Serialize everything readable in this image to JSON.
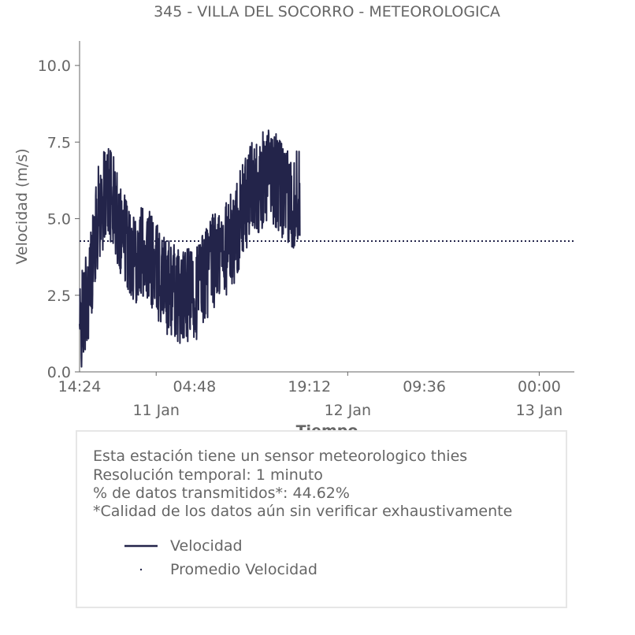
{
  "title": "345 - VILLA DEL SOCORRO - METEOROLOGICA",
  "chart_data": {
    "type": "line",
    "ylabel": "Velocidad (m/s)",
    "xlabel": "Tiempo",
    "ylim": [
      0,
      10.8
    ],
    "yticks": [
      "0.0",
      "2.5",
      "5.0",
      "7.5",
      "10.0"
    ],
    "xlim_hours": [
      0,
      62
    ],
    "xtick_times": [
      "14:24",
      "04:48",
      "19:12",
      "09:36",
      "00:00"
    ],
    "xtick_dates": [
      "11 Jan",
      "12 Jan",
      "13 Jan"
    ],
    "series": [
      {
        "name": "Velocidad",
        "color": "#23244a",
        "segments": [
          {
            "x": [
              0.0,
              1.2,
              2.4,
              3.6,
              4.8,
              6.0,
              7.2,
              8.4,
              9.6,
              10.8,
              12.0,
              13.2,
              14.4,
              15.6,
              16.8,
              18.0,
              19.2,
              20.4,
              21.6,
              22.8,
              24.0,
              25.2,
              26.4,
              27.6
            ],
            "y": [
              1.3,
              2.8,
              5.2,
              6.0,
              5.0,
              4.2,
              3.8,
              3.9,
              3.3,
              2.8,
              2.6,
              2.4,
              2.5,
              3.2,
              3.6,
              4.0,
              4.3,
              5.2,
              6.0,
              6.2,
              6.5,
              6.0,
              5.5,
              5.8
            ]
          }
        ]
      },
      {
        "name": "Promedio Velocidad",
        "color": "#23244a",
        "constant": 4.27
      }
    ]
  },
  "info": {
    "line1": "Esta estación tiene un sensor meteorologico thies",
    "line2": "Resolución temporal: 1 minuto",
    "line3": "% de datos transmitidos*: 44.62%",
    "line4": "*Calidad de los datos aún sin verificar exhaustivamente"
  },
  "legend": {
    "velocidad": "Velocidad",
    "promedio": "Promedio Velocidad"
  }
}
